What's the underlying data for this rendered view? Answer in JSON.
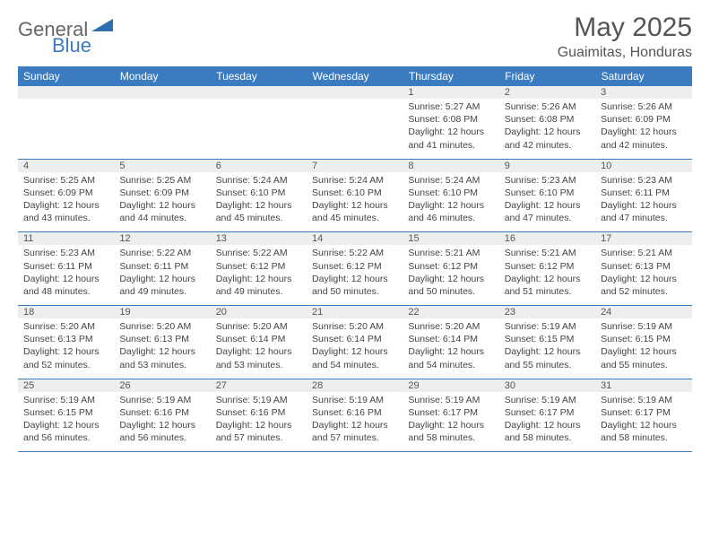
{
  "brand": {
    "general": "General",
    "blue": "Blue"
  },
  "title": "May 2025",
  "location": "Guaimitas, Honduras",
  "colors": {
    "header_bg": "#3b7bbf",
    "header_text": "#ffffff",
    "daynum_bg": "#eceef0",
    "rule": "#3b7bbf",
    "text": "#444444",
    "title_text": "#555555"
  },
  "typography": {
    "title_fontsize": 30,
    "location_fontsize": 16,
    "dayheader_fontsize": 12,
    "daynum_fontsize": 11,
    "detail_fontsize": 10.5
  },
  "calendar": {
    "day_headers": [
      "Sunday",
      "Monday",
      "Tuesday",
      "Wednesday",
      "Thursday",
      "Friday",
      "Saturday"
    ],
    "weeks": [
      [
        null,
        null,
        null,
        null,
        {
          "n": "1",
          "sunrise": "5:27 AM",
          "sunset": "6:08 PM",
          "daylight": "12 hours and 41 minutes."
        },
        {
          "n": "2",
          "sunrise": "5:26 AM",
          "sunset": "6:08 PM",
          "daylight": "12 hours and 42 minutes."
        },
        {
          "n": "3",
          "sunrise": "5:26 AM",
          "sunset": "6:09 PM",
          "daylight": "12 hours and 42 minutes."
        }
      ],
      [
        {
          "n": "4",
          "sunrise": "5:25 AM",
          "sunset": "6:09 PM",
          "daylight": "12 hours and 43 minutes."
        },
        {
          "n": "5",
          "sunrise": "5:25 AM",
          "sunset": "6:09 PM",
          "daylight": "12 hours and 44 minutes."
        },
        {
          "n": "6",
          "sunrise": "5:24 AM",
          "sunset": "6:10 PM",
          "daylight": "12 hours and 45 minutes."
        },
        {
          "n": "7",
          "sunrise": "5:24 AM",
          "sunset": "6:10 PM",
          "daylight": "12 hours and 45 minutes."
        },
        {
          "n": "8",
          "sunrise": "5:24 AM",
          "sunset": "6:10 PM",
          "daylight": "12 hours and 46 minutes."
        },
        {
          "n": "9",
          "sunrise": "5:23 AM",
          "sunset": "6:10 PM",
          "daylight": "12 hours and 47 minutes."
        },
        {
          "n": "10",
          "sunrise": "5:23 AM",
          "sunset": "6:11 PM",
          "daylight": "12 hours and 47 minutes."
        }
      ],
      [
        {
          "n": "11",
          "sunrise": "5:23 AM",
          "sunset": "6:11 PM",
          "daylight": "12 hours and 48 minutes."
        },
        {
          "n": "12",
          "sunrise": "5:22 AM",
          "sunset": "6:11 PM",
          "daylight": "12 hours and 49 minutes."
        },
        {
          "n": "13",
          "sunrise": "5:22 AM",
          "sunset": "6:12 PM",
          "daylight": "12 hours and 49 minutes."
        },
        {
          "n": "14",
          "sunrise": "5:22 AM",
          "sunset": "6:12 PM",
          "daylight": "12 hours and 50 minutes."
        },
        {
          "n": "15",
          "sunrise": "5:21 AM",
          "sunset": "6:12 PM",
          "daylight": "12 hours and 50 minutes."
        },
        {
          "n": "16",
          "sunrise": "5:21 AM",
          "sunset": "6:12 PM",
          "daylight": "12 hours and 51 minutes."
        },
        {
          "n": "17",
          "sunrise": "5:21 AM",
          "sunset": "6:13 PM",
          "daylight": "12 hours and 52 minutes."
        }
      ],
      [
        {
          "n": "18",
          "sunrise": "5:20 AM",
          "sunset": "6:13 PM",
          "daylight": "12 hours and 52 minutes."
        },
        {
          "n": "19",
          "sunrise": "5:20 AM",
          "sunset": "6:13 PM",
          "daylight": "12 hours and 53 minutes."
        },
        {
          "n": "20",
          "sunrise": "5:20 AM",
          "sunset": "6:14 PM",
          "daylight": "12 hours and 53 minutes."
        },
        {
          "n": "21",
          "sunrise": "5:20 AM",
          "sunset": "6:14 PM",
          "daylight": "12 hours and 54 minutes."
        },
        {
          "n": "22",
          "sunrise": "5:20 AM",
          "sunset": "6:14 PM",
          "daylight": "12 hours and 54 minutes."
        },
        {
          "n": "23",
          "sunrise": "5:19 AM",
          "sunset": "6:15 PM",
          "daylight": "12 hours and 55 minutes."
        },
        {
          "n": "24",
          "sunrise": "5:19 AM",
          "sunset": "6:15 PM",
          "daylight": "12 hours and 55 minutes."
        }
      ],
      [
        {
          "n": "25",
          "sunrise": "5:19 AM",
          "sunset": "6:15 PM",
          "daylight": "12 hours and 56 minutes."
        },
        {
          "n": "26",
          "sunrise": "5:19 AM",
          "sunset": "6:16 PM",
          "daylight": "12 hours and 56 minutes."
        },
        {
          "n": "27",
          "sunrise": "5:19 AM",
          "sunset": "6:16 PM",
          "daylight": "12 hours and 57 minutes."
        },
        {
          "n": "28",
          "sunrise": "5:19 AM",
          "sunset": "6:16 PM",
          "daylight": "12 hours and 57 minutes."
        },
        {
          "n": "29",
          "sunrise": "5:19 AM",
          "sunset": "6:17 PM",
          "daylight": "12 hours and 58 minutes."
        },
        {
          "n": "30",
          "sunrise": "5:19 AM",
          "sunset": "6:17 PM",
          "daylight": "12 hours and 58 minutes."
        },
        {
          "n": "31",
          "sunrise": "5:19 AM",
          "sunset": "6:17 PM",
          "daylight": "12 hours and 58 minutes."
        }
      ]
    ],
    "labels": {
      "sunrise": "Sunrise:",
      "sunset": "Sunset:",
      "daylight": "Daylight:"
    }
  }
}
